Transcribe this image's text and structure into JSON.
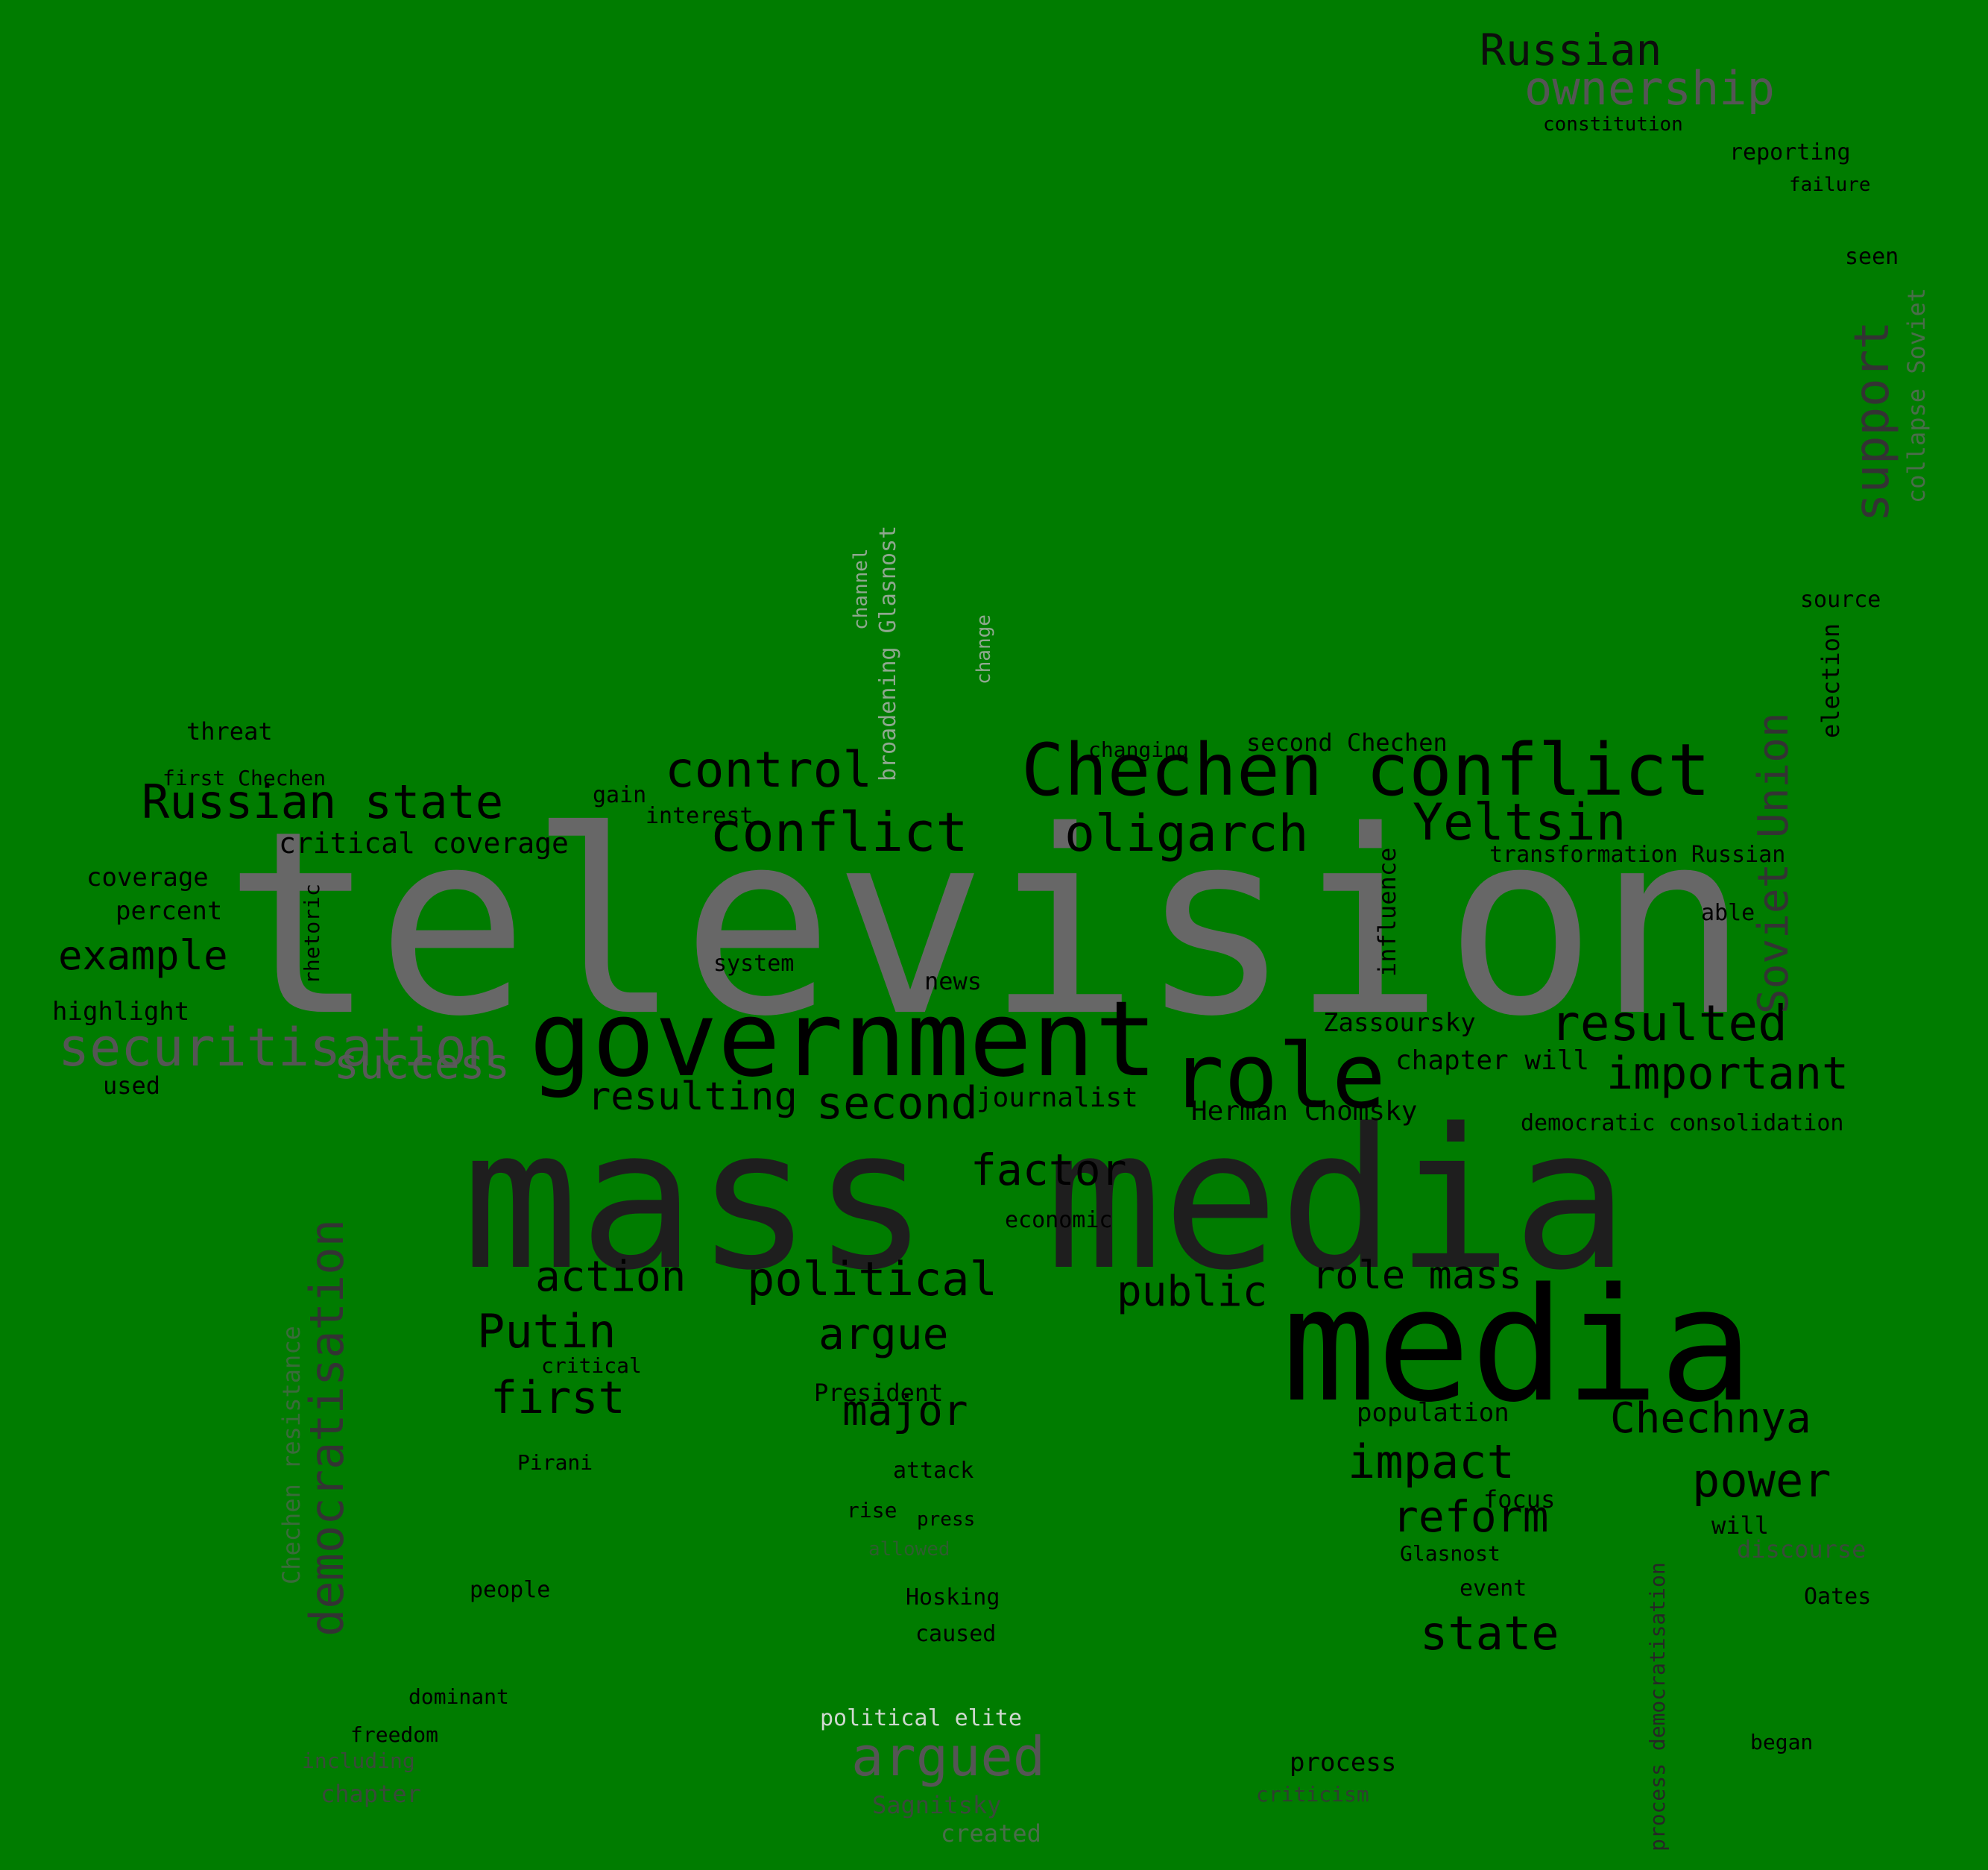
{
  "background_color": "#007c00",
  "words": [
    {
      "text": "television",
      "color": "#676767"
    },
    {
      "text": "mass media",
      "color": "#1e1e1e"
    },
    {
      "text": "media",
      "color": "#000000"
    },
    {
      "text": "government",
      "color": "#000000"
    },
    {
      "text": "role",
      "color": "#000000"
    },
    {
      "text": "Chechen conflict",
      "color": "#000000"
    },
    {
      "text": "securitisation",
      "color": "#555555"
    },
    {
      "text": "democratisation",
      "color": "#333333"
    },
    {
      "text": "oligarch",
      "color": "#000000"
    },
    {
      "text": "Yeltsin",
      "color": "#000000"
    },
    {
      "text": "conflict",
      "color": "#000000"
    },
    {
      "text": "control",
      "color": "#000000"
    },
    {
      "text": "Russian state",
      "color": "#000000"
    },
    {
      "text": "resulted",
      "color": "#000000"
    },
    {
      "text": "important",
      "color": "#000000"
    },
    {
      "text": "support",
      "color": "#333333"
    },
    {
      "text": "Soviet Union",
      "color": "#333333"
    },
    {
      "text": "argued",
      "color": "#555555"
    },
    {
      "text": "Russian",
      "color": "#0d0d0d"
    },
    {
      "text": "ownership",
      "color": "#555555"
    },
    {
      "text": "Putin",
      "color": "#000000"
    },
    {
      "text": "Chechnya",
      "color": "#000000"
    },
    {
      "text": "political",
      "color": "#000000"
    },
    {
      "text": "action",
      "color": "#000000"
    },
    {
      "text": "argue",
      "color": "#000000"
    },
    {
      "text": "example",
      "color": "#000000"
    },
    {
      "text": "impact",
      "color": "#000000"
    },
    {
      "text": "state",
      "color": "#000000"
    },
    {
      "text": "factor",
      "color": "#000000"
    },
    {
      "text": "first",
      "color": "#000000"
    },
    {
      "text": "second",
      "color": "#000000"
    },
    {
      "text": "resulting",
      "color": "#000000"
    },
    {
      "text": "power",
      "color": "#000000"
    },
    {
      "text": "reform",
      "color": "#000000"
    },
    {
      "text": "role mass",
      "color": "#000000"
    },
    {
      "text": "public",
      "color": "#000000"
    },
    {
      "text": "major",
      "color": "#000000"
    },
    {
      "text": "success",
      "color": "#595959"
    },
    {
      "text": "critical coverage",
      "color": "#000000"
    },
    {
      "text": "journalist",
      "color": "#000000"
    },
    {
      "text": "Herman Chomsky",
      "color": "#000000"
    },
    {
      "text": "chapter will",
      "color": "#000000"
    },
    {
      "text": "Zassoursky",
      "color": "#000000"
    },
    {
      "text": "population",
      "color": "#000000"
    },
    {
      "text": "democratic consolidation",
      "color": "#000000"
    },
    {
      "text": "transformation Russian",
      "color": "#000000"
    },
    {
      "text": "second Chechen",
      "color": "#000000"
    },
    {
      "text": "Chechen resistance",
      "color": "#3a6b3a"
    },
    {
      "text": "collapse Soviet",
      "color": "#4a6d4a"
    },
    {
      "text": "broadening Glasnost",
      "color": "#8fa88f"
    },
    {
      "text": "channel",
      "color": "#8fa88f"
    },
    {
      "text": "change",
      "color": "#8fa88f"
    },
    {
      "text": "process democratisation",
      "color": "#262626"
    },
    {
      "text": "influence",
      "color": "#000000"
    },
    {
      "text": "election",
      "color": "#000000"
    },
    {
      "text": "rhetoric",
      "color": "#000000"
    },
    {
      "text": "threat",
      "color": "#000000"
    },
    {
      "text": "first Chechen",
      "color": "#000000"
    },
    {
      "text": "gain",
      "color": "#000000"
    },
    {
      "text": "interest",
      "color": "#000000"
    },
    {
      "text": "coverage",
      "color": "#000000"
    },
    {
      "text": "percent",
      "color": "#000000"
    },
    {
      "text": "highlight",
      "color": "#000000"
    },
    {
      "text": "used",
      "color": "#000000"
    },
    {
      "text": "system",
      "color": "#000000"
    },
    {
      "text": "news",
      "color": "#000000"
    },
    {
      "text": "economic",
      "color": "#000000"
    },
    {
      "text": "able",
      "color": "#000000"
    },
    {
      "text": "source",
      "color": "#000000"
    },
    {
      "text": "seen",
      "color": "#000000"
    },
    {
      "text": "reporting",
      "color": "#000000"
    },
    {
      "text": "failure",
      "color": "#000000"
    },
    {
      "text": "constitution",
      "color": "#000000"
    },
    {
      "text": "changing",
      "color": "#000000"
    },
    {
      "text": "critical",
      "color": "#000000"
    },
    {
      "text": "President",
      "color": "#000000"
    },
    {
      "text": "Pirani",
      "color": "#000000"
    },
    {
      "text": "attack",
      "color": "#000000"
    },
    {
      "text": "rise",
      "color": "#000000"
    },
    {
      "text": "press",
      "color": "#000000"
    },
    {
      "text": "allowed",
      "color": "#2e5d2e"
    },
    {
      "text": "focus",
      "color": "#000000"
    },
    {
      "text": "will",
      "color": "#000000"
    },
    {
      "text": "discourse",
      "color": "#3a4a3a"
    },
    {
      "text": "Glasnost",
      "color": "#000000"
    },
    {
      "text": "event",
      "color": "#000000"
    },
    {
      "text": "Oates",
      "color": "#000000"
    },
    {
      "text": "people",
      "color": "#000000"
    },
    {
      "text": "Hosking",
      "color": "#000000"
    },
    {
      "text": "caused",
      "color": "#000000"
    },
    {
      "text": "dominant",
      "color": "#000000"
    },
    {
      "text": "freedom",
      "color": "#000000"
    },
    {
      "text": "including",
      "color": "#3a4a3a"
    },
    {
      "text": "chapter",
      "color": "#3a4a3a"
    },
    {
      "text": "political elite",
      "color": "#cfd8cf"
    },
    {
      "text": "Sagnitsky",
      "color": "#3a4a3a"
    },
    {
      "text": "created",
      "color": "#4a6d4a"
    },
    {
      "text": "process",
      "color": "#000000"
    },
    {
      "text": "criticism",
      "color": "#2f3f2f"
    },
    {
      "text": "began",
      "color": "#000000"
    }
  ]
}
